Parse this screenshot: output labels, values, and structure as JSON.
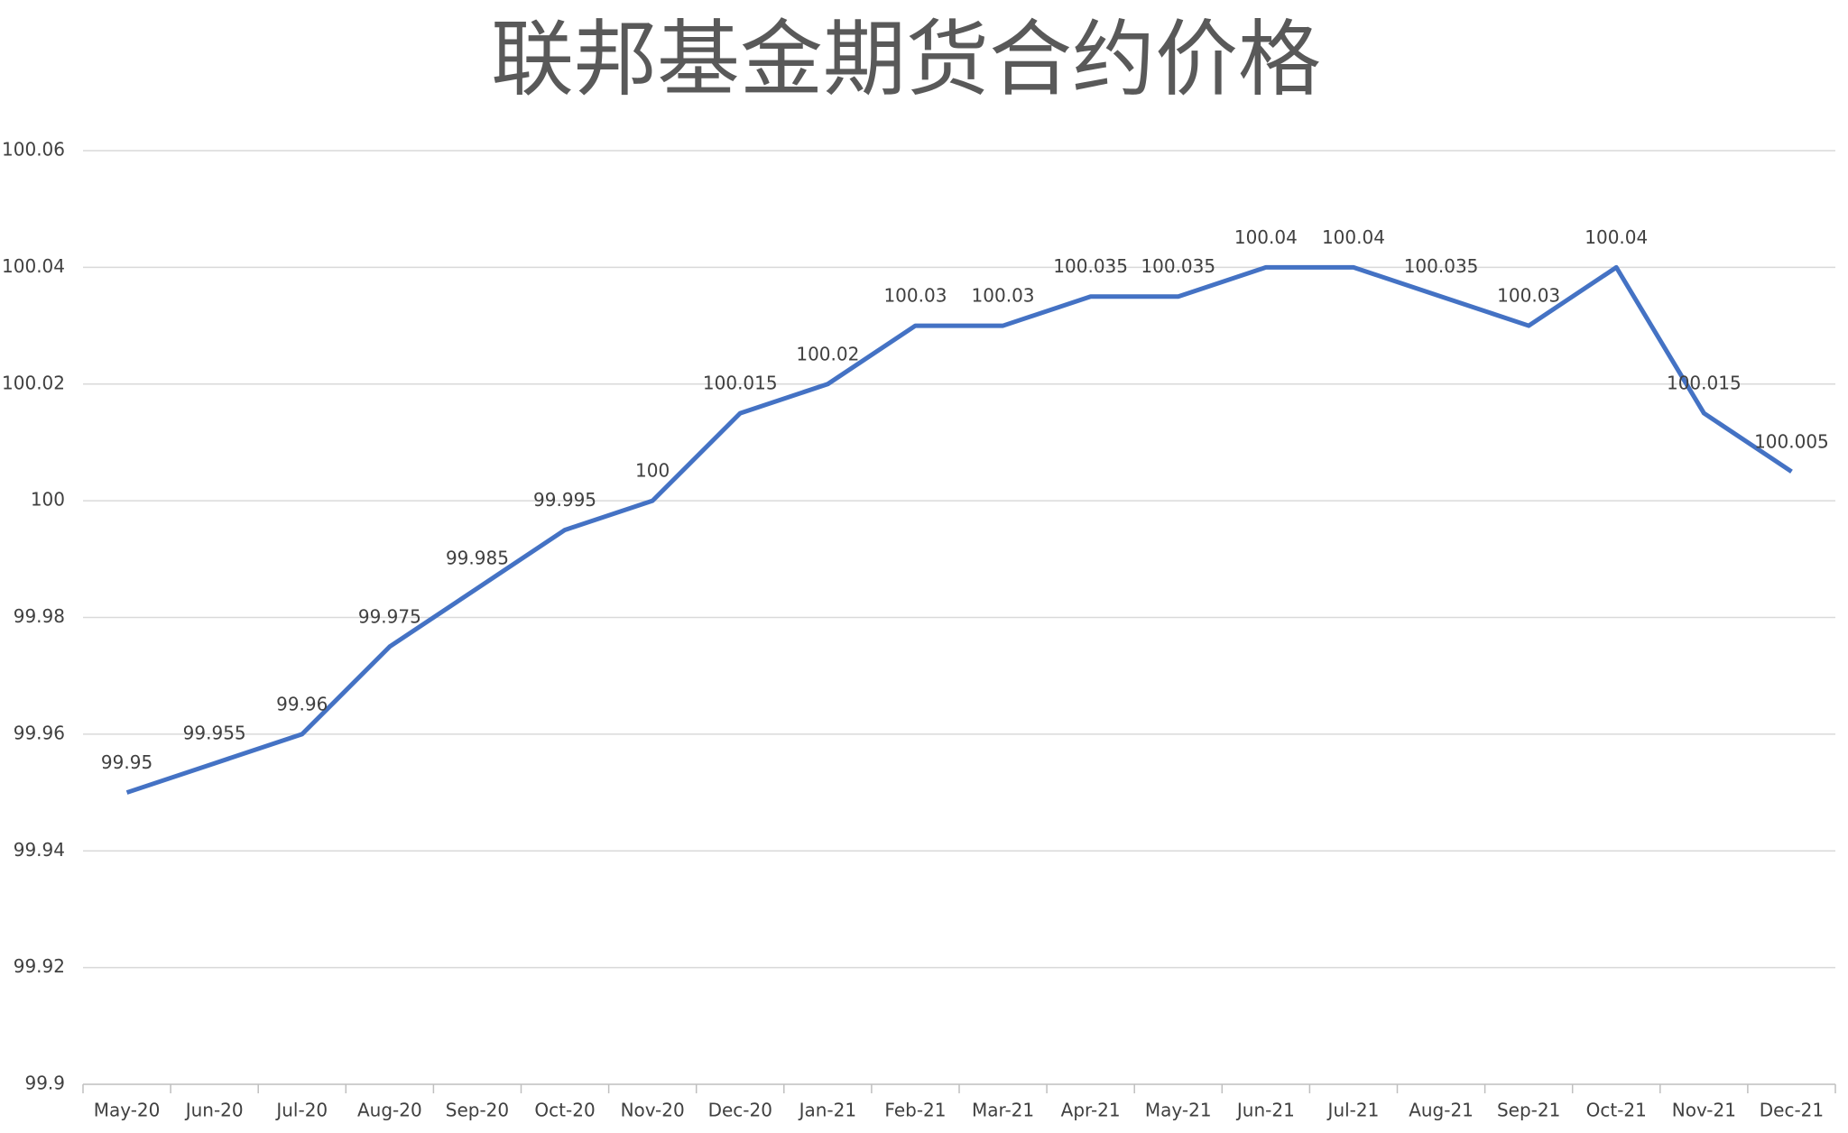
{
  "chart_data": {
    "type": "line",
    "title": "联邦基金期货合约价格",
    "categories": [
      "May-20",
      "Jun-20",
      "Jul-20",
      "Aug-20",
      "Sep-20",
      "Oct-20",
      "Nov-20",
      "Dec-20",
      "Jan-21",
      "Feb-21",
      "Mar-21",
      "Apr-21",
      "May-21",
      "Jun-21",
      "Jul-21",
      "Aug-21",
      "Sep-21",
      "Oct-21",
      "Nov-21",
      "Dec-21"
    ],
    "series": [
      {
        "color": "#4472c4",
        "values": [
          99.95,
          99.955,
          99.96,
          99.975,
          99.985,
          99.995,
          100,
          100.015,
          100.02,
          100.03,
          100.03,
          100.035,
          100.035,
          100.04,
          100.04,
          100.035,
          100.03,
          100.04,
          100.015,
          100.005
        ]
      }
    ],
    "ylim": [
      99.9,
      100.06
    ],
    "yticks": [
      99.9,
      99.92,
      99.94,
      99.96,
      99.98,
      100,
      100.02,
      100.04,
      100.06
    ],
    "grid": true,
    "data_labels": true
  }
}
